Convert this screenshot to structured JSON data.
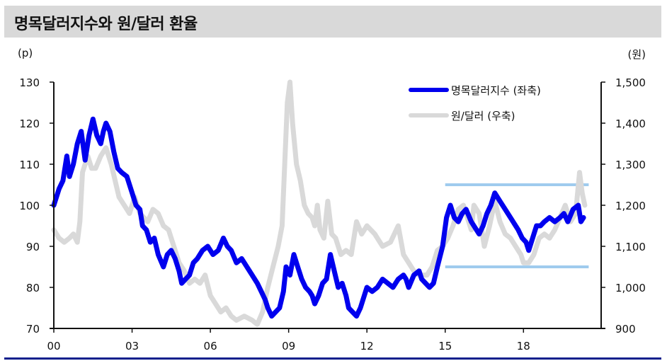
{
  "header": {
    "title": "명목달러지수와 원/달러 환율"
  },
  "axes": {
    "left_unit": "(p)",
    "right_unit": "(원)",
    "left_ticks": [
      "130",
      "120",
      "110",
      "100",
      "90",
      "80",
      "70"
    ],
    "right_ticks": [
      "1,500",
      "1,400",
      "1,300",
      "1,200",
      "1,100",
      "1,000",
      "900"
    ],
    "x_ticks": [
      "00",
      "03",
      "06",
      "09",
      "12",
      "15",
      "18"
    ]
  },
  "legend": {
    "items": [
      {
        "label": "명목달러지수 (좌축)",
        "color": "#0000ee"
      },
      {
        "label": "원/달러 (우축)",
        "color": "#d9d9d9"
      }
    ]
  },
  "colors": {
    "dollar_index": "#0000ee",
    "krw_usd": "#d9d9d9",
    "band": "#9fcbee",
    "title_bg": "#d9d9d9",
    "bottom_rule": "#0f1f8c"
  },
  "chart_data": {
    "type": "line",
    "title": "명목달러지수와 원/달러 환율",
    "xlabel": "",
    "ylabel": "(p)",
    "y2label": "(원)",
    "x_tick_labels": [
      "00",
      "03",
      "06",
      "09",
      "12",
      "15",
      "18"
    ],
    "x_range": [
      2000,
      2021
    ],
    "ylim": [
      70,
      130
    ],
    "y2lim": [
      900,
      1500
    ],
    "grid": false,
    "legend_position": "top-right",
    "series": [
      {
        "name": "명목달러지수 (좌축)",
        "axis": "left",
        "x": [
          2000.0,
          2000.2,
          2000.35,
          2000.5,
          2000.6,
          2000.75,
          2000.9,
          2001.05,
          2001.2,
          2001.35,
          2001.5,
          2001.65,
          2001.8,
          2001.9,
          2002.0,
          2002.15,
          2002.3,
          2002.45,
          2002.6,
          2002.8,
          2003.0,
          2003.15,
          2003.3,
          2003.4,
          2003.55,
          2003.7,
          2003.85,
          2004.0,
          2004.2,
          2004.35,
          2004.5,
          2004.65,
          2004.8,
          2004.9,
          2005.05,
          2005.2,
          2005.35,
          2005.5,
          2005.7,
          2005.9,
          2006.1,
          2006.3,
          2006.5,
          2006.65,
          2006.8,
          2007.0,
          2007.2,
          2007.4,
          2007.6,
          2007.8,
          2007.95,
          2008.1,
          2008.2,
          2008.35,
          2008.5,
          2008.65,
          2008.8,
          2008.9,
          2009.05,
          2009.2,
          2009.35,
          2009.5,
          2009.65,
          2009.8,
          2009.9,
          2010.0,
          2010.15,
          2010.3,
          2010.45,
          2010.6,
          2010.75,
          2010.9,
          2011.05,
          2011.2,
          2011.3,
          2011.45,
          2011.6,
          2011.75,
          2011.9,
          2012.0,
          2012.2,
          2012.4,
          2012.6,
          2012.8,
          2013.0,
          2013.2,
          2013.4,
          2013.5,
          2013.6,
          2013.8,
          2014.0,
          2014.1,
          2014.25,
          2014.4,
          2014.55,
          2014.7,
          2014.9,
          2015.05,
          2015.2,
          2015.35,
          2015.5,
          2015.65,
          2015.8,
          2016.0,
          2016.3,
          2016.45,
          2016.6,
          2016.75,
          2016.9,
          2017.1,
          2017.3,
          2017.5,
          2017.8,
          2017.95,
          2018.1,
          2018.2,
          2018.35,
          2018.5,
          2018.65,
          2018.8,
          2019.0,
          2019.2,
          2019.4,
          2019.55,
          2019.7,
          2019.9,
          2020.1,
          2020.2,
          2020.3
        ],
        "values": [
          100,
          104,
          106,
          112,
          107,
          110,
          115,
          118,
          111,
          117,
          121,
          117,
          115,
          118,
          120,
          118,
          113,
          109,
          108,
          107,
          103,
          100,
          99,
          95,
          94,
          91,
          92,
          88,
          85,
          88,
          89,
          87,
          84,
          81,
          82,
          83,
          86,
          87,
          89,
          90,
          88,
          89,
          92,
          90,
          89,
          86,
          87,
          85,
          83,
          81,
          79,
          77,
          75,
          73,
          74,
          75,
          79,
          85,
          83,
          88,
          85,
          82,
          80,
          79,
          78,
          76,
          78,
          81,
          82,
          88,
          84,
          80,
          81,
          78,
          75,
          74,
          73,
          75,
          78,
          80,
          79,
          80,
          82,
          81,
          80,
          82,
          83,
          82,
          80,
          83,
          84,
          82,
          81,
          80,
          81,
          85,
          90,
          97,
          100,
          97,
          96,
          98,
          99,
          96,
          93,
          95,
          98,
          100,
          103,
          101,
          99,
          97,
          94,
          92,
          91,
          89,
          92,
          95,
          95,
          96,
          97,
          96,
          97,
          98,
          96,
          99,
          100,
          96,
          97
        ]
      },
      {
        "name": "원/달러 (우축)",
        "axis": "right",
        "x": [
          2000.0,
          2000.2,
          2000.4,
          2000.6,
          2000.75,
          2000.9,
          2001.0,
          2001.1,
          2001.3,
          2001.45,
          2001.6,
          2001.8,
          2002.0,
          2002.2,
          2002.35,
          2002.5,
          2002.7,
          2002.9,
          2003.1,
          2003.3,
          2003.6,
          2003.8,
          2004.0,
          2004.2,
          2004.4,
          2004.6,
          2004.8,
          2005.0,
          2005.2,
          2005.4,
          2005.6,
          2005.8,
          2006.0,
          2006.2,
          2006.4,
          2006.6,
          2006.8,
          2007.0,
          2007.3,
          2007.6,
          2007.8,
          2008.0,
          2008.2,
          2008.4,
          2008.6,
          2008.75,
          2008.85,
          2008.95,
          2009.05,
          2009.15,
          2009.3,
          2009.45,
          2009.6,
          2009.75,
          2009.9,
          2010.0,
          2010.1,
          2010.2,
          2010.35,
          2010.5,
          2010.65,
          2010.8,
          2011.0,
          2011.2,
          2011.4,
          2011.6,
          2011.8,
          2012.0,
          2012.3,
          2012.6,
          2012.9,
          2013.2,
          2013.4,
          2013.6,
          2013.8,
          2014.0,
          2014.3,
          2014.5,
          2014.7,
          2014.9,
          2015.1,
          2015.3,
          2015.5,
          2015.7,
          2015.9,
          2016.0,
          2016.1,
          2016.3,
          2016.5,
          2016.7,
          2016.9,
          2017.1,
          2017.3,
          2017.5,
          2017.7,
          2017.9,
          2018.0,
          2018.2,
          2018.4,
          2018.6,
          2018.8,
          2019.0,
          2019.2,
          2019.4,
          2019.6,
          2019.8,
          2020.0,
          2020.15,
          2020.25,
          2020.35
        ],
        "values": [
          1140,
          1120,
          1110,
          1120,
          1130,
          1110,
          1160,
          1280,
          1320,
          1290,
          1290,
          1320,
          1340,
          1300,
          1260,
          1220,
          1200,
          1180,
          1220,
          1180,
          1160,
          1190,
          1180,
          1150,
          1140,
          1100,
          1060,
          1040,
          1010,
          1020,
          1010,
          1030,
          980,
          960,
          940,
          950,
          930,
          920,
          930,
          920,
          910,
          940,
          1000,
          1050,
          1100,
          1150,
          1300,
          1450,
          1500,
          1400,
          1300,
          1260,
          1200,
          1180,
          1170,
          1150,
          1200,
          1140,
          1120,
          1210,
          1130,
          1120,
          1080,
          1090,
          1080,
          1160,
          1130,
          1150,
          1130,
          1100,
          1110,
          1150,
          1080,
          1060,
          1040,
          1030,
          1030,
          1050,
          1090,
          1100,
          1120,
          1150,
          1190,
          1200,
          1160,
          1140,
          1200,
          1180,
          1100,
          1150,
          1210,
          1160,
          1130,
          1120,
          1100,
          1080,
          1060,
          1060,
          1080,
          1120,
          1130,
          1120,
          1140,
          1170,
          1200,
          1160,
          1180,
          1280,
          1230,
          1200
        ]
      }
    ],
    "annotations": [
      {
        "type": "hline",
        "axis": "right",
        "value": 1250,
        "x_from": 2015.0,
        "x_to": 2020.5,
        "color": "#9fcbee"
      },
      {
        "type": "hline",
        "axis": "right",
        "value": 1050,
        "x_from": 2015.0,
        "x_to": 2020.5,
        "color": "#9fcbee"
      }
    ]
  }
}
